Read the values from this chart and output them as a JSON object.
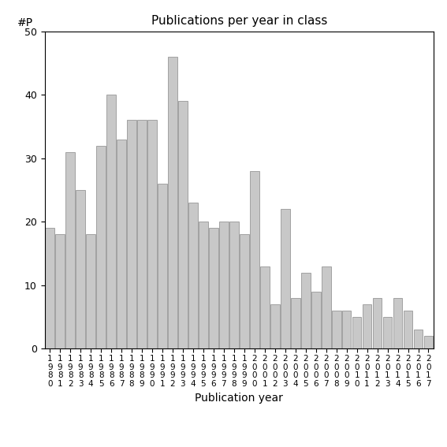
{
  "title": "Publications per year in class",
  "xlabel": "Publication year",
  "ylabel": "#P",
  "ylim": [
    0,
    50
  ],
  "bar_color": "#c8c8c8",
  "bar_edge_color": "#888888",
  "years": [
    1980,
    1981,
    1982,
    1983,
    1984,
    1985,
    1986,
    1987,
    1988,
    1989,
    1990,
    1991,
    1992,
    1993,
    1994,
    1995,
    1996,
    1997,
    1998,
    1999,
    2000,
    2001,
    2002,
    2003,
    2004,
    2005,
    2006,
    2007,
    2008,
    2009,
    2010,
    2011,
    2012,
    2013,
    2014,
    2015,
    2016,
    2017
  ],
  "values": [
    19,
    18,
    31,
    25,
    18,
    32,
    40,
    33,
    36,
    36,
    36,
    26,
    46,
    39,
    23,
    20,
    19,
    20,
    20,
    18,
    28,
    13,
    7,
    22,
    8,
    12,
    9,
    13,
    6,
    6,
    5,
    7,
    8,
    5,
    8,
    6,
    3,
    2
  ],
  "yticks": [
    0,
    10,
    20,
    30,
    40,
    50
  ],
  "background_color": "#ffffff",
  "tick_label_fontsize": 7.5,
  "axis_label_fontsize": 10,
  "title_fontsize": 11
}
